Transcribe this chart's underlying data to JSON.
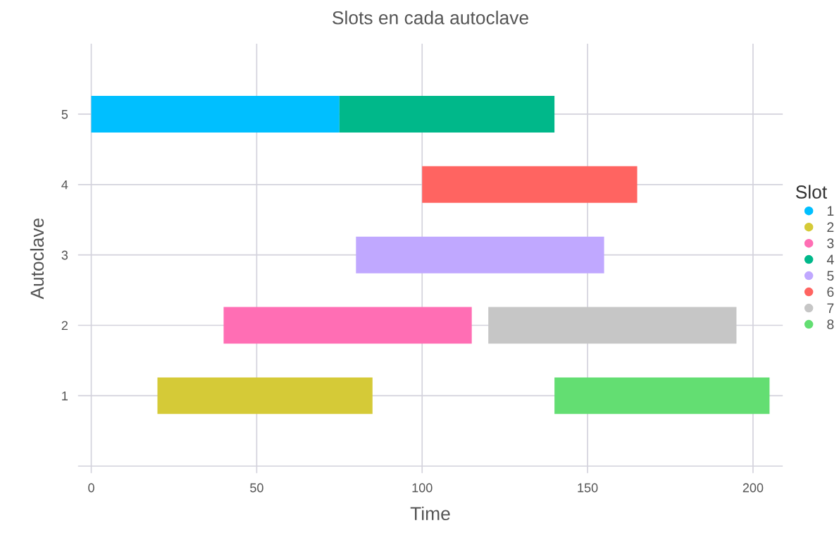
{
  "chart_data": {
    "type": "bar",
    "orientation": "horizontal",
    "title": "Slots en cada autoclave",
    "xlabel": "Time",
    "ylabel": "Autoclave",
    "legend_title": "Slot",
    "legend": "right",
    "grid": true,
    "categories": [
      "5",
      "4",
      "3",
      "2",
      "1",
      null
    ],
    "xlim": [
      -4,
      209
    ],
    "xticks": [
      0,
      50,
      100,
      150,
      200
    ],
    "series": [
      {
        "name": "1",
        "color": "#00bfff",
        "values": [
          75,
          null,
          null,
          null,
          null,
          null
        ],
        "base": [
          0,
          null,
          null,
          null,
          null,
          null
        ]
      },
      {
        "name": "2",
        "color": "#d5ca37",
        "values": [
          null,
          null,
          null,
          null,
          65,
          null
        ],
        "base": [
          null,
          null,
          null,
          null,
          20,
          null
        ]
      },
      {
        "name": "3",
        "color": "#ff6eb4",
        "values": [
          null,
          null,
          null,
          75,
          null,
          null
        ],
        "base": [
          null,
          null,
          null,
          40,
          null,
          null
        ]
      },
      {
        "name": "4",
        "color": "#00b88a",
        "values": [
          65,
          null,
          null,
          null,
          null,
          null
        ],
        "base": [
          75,
          null,
          null,
          null,
          null,
          null
        ]
      },
      {
        "name": "5",
        "color": "#c0a8ff",
        "values": [
          null,
          null,
          75,
          null,
          null,
          null
        ],
        "base": [
          null,
          null,
          80,
          null,
          null,
          null
        ]
      },
      {
        "name": "6",
        "color": "#ff6461",
        "values": [
          null,
          65,
          null,
          null,
          null,
          null
        ],
        "base": [
          null,
          100,
          null,
          null,
          null,
          null
        ]
      },
      {
        "name": "7",
        "color": "#c6c6c6",
        "values": [
          null,
          null,
          null,
          75,
          null,
          null
        ],
        "base": [
          null,
          null,
          null,
          120,
          null,
          null
        ]
      },
      {
        "name": "8",
        "color": "#63de72",
        "values": [
          null,
          null,
          null,
          null,
          65,
          null
        ],
        "base": [
          null,
          null,
          null,
          null,
          140,
          null
        ]
      }
    ]
  }
}
